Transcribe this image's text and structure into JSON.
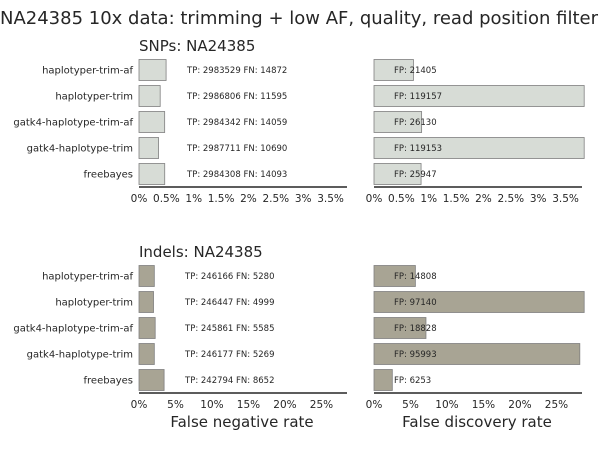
{
  "figure_title": "NA24385 10x data: trimming + low AF, quality, read position filter",
  "colors": {
    "snp_bar": "#d7dcd6",
    "indel_bar": "#a8a494",
    "bar_edge": "#7f7f7f",
    "axis": "#262626"
  },
  "chart_data": [
    {
      "type": "bar",
      "orientation": "horizontal",
      "panel": "snp_fnr",
      "title": "SNPs: NA24385",
      "xlabel": "",
      "categories": [
        "haplotyper-trim-af",
        "haplotyper-trim",
        "gatk4-haplotype-trim-af",
        "gatk4-haplotype-trim",
        "freebayes"
      ],
      "values": [
        0.495,
        0.387,
        0.469,
        0.357,
        0.47
      ],
      "xlim": [
        0,
        3.8
      ],
      "xticks": [
        0,
        0.5,
        1,
        1.5,
        2,
        2.5,
        3,
        3.5
      ],
      "xtick_labels": [
        "0%",
        "0.5%",
        "1%",
        "1.5%",
        "2%",
        "2.5%",
        "3%",
        "3.5%"
      ],
      "annotations": [
        "TP: 2983529 FN: 14872",
        "TP: 2986806 FN: 11595",
        "TP: 2984342 FN: 14059",
        "TP: 2987711 FN: 10690",
        "TP: 2984308 FN: 14093"
      ]
    },
    {
      "type": "bar",
      "orientation": "horizontal",
      "panel": "snp_fdr",
      "title": "",
      "xlabel": "",
      "categories": [
        "haplotyper-trim-af",
        "haplotyper-trim",
        "gatk4-haplotype-trim-af",
        "gatk4-haplotype-trim",
        "freebayes"
      ],
      "values": [
        0.72,
        3.84,
        0.87,
        3.84,
        0.86
      ],
      "xlim": [
        0,
        3.8
      ],
      "xticks": [
        0,
        0.5,
        1,
        1.5,
        2,
        2.5,
        3,
        3.5
      ],
      "xtick_labels": [
        "0%",
        "0.5%",
        "1%",
        "1.5%",
        "2%",
        "2.5%",
        "3%",
        "3.5%"
      ],
      "annotations": [
        "FP: 21405",
        "FP: 119157",
        "FP: 26130",
        "FP: 119153",
        "FP: 25947"
      ]
    },
    {
      "type": "bar",
      "orientation": "horizontal",
      "panel": "indel_fnr",
      "title": "Indels: NA24385",
      "xlabel": "False negative rate",
      "categories": [
        "haplotyper-trim-af",
        "haplotyper-trim",
        "gatk4-haplotype-trim-af",
        "gatk4-haplotype-trim",
        "freebayes"
      ],
      "values": [
        2.1,
        1.99,
        2.22,
        2.1,
        3.44
      ],
      "xlim": [
        0,
        28.5
      ],
      "xticks": [
        0,
        5,
        10,
        15,
        20,
        25
      ],
      "xtick_labels": [
        "0%",
        "5%",
        "10%",
        "15%",
        "20%",
        "25%"
      ],
      "annotations": [
        "TP: 246166 FN: 5280",
        "TP: 246447 FN: 4999",
        "TP: 245861 FN: 5585",
        "TP: 246177 FN: 5269",
        "TP: 242794 FN: 8652"
      ]
    },
    {
      "type": "bar",
      "orientation": "horizontal",
      "panel": "indel_fdr",
      "title": "",
      "xlabel": "False discovery rate",
      "categories": [
        "haplotyper-trim-af",
        "haplotyper-trim",
        "gatk4-haplotype-trim-af",
        "gatk4-haplotype-trim",
        "freebayes"
      ],
      "values": [
        5.67,
        28.8,
        7.12,
        28.2,
        2.51
      ],
      "xlim": [
        0,
        28.5
      ],
      "xticks": [
        0,
        5,
        10,
        15,
        20,
        25
      ],
      "xtick_labels": [
        "0%",
        "5%",
        "10%",
        "15%",
        "20%",
        "25%"
      ],
      "annotations": [
        "FP: 14808",
        "FP: 97140",
        "FP: 18828",
        "FP: 95993",
        "FP: 6253"
      ]
    }
  ]
}
